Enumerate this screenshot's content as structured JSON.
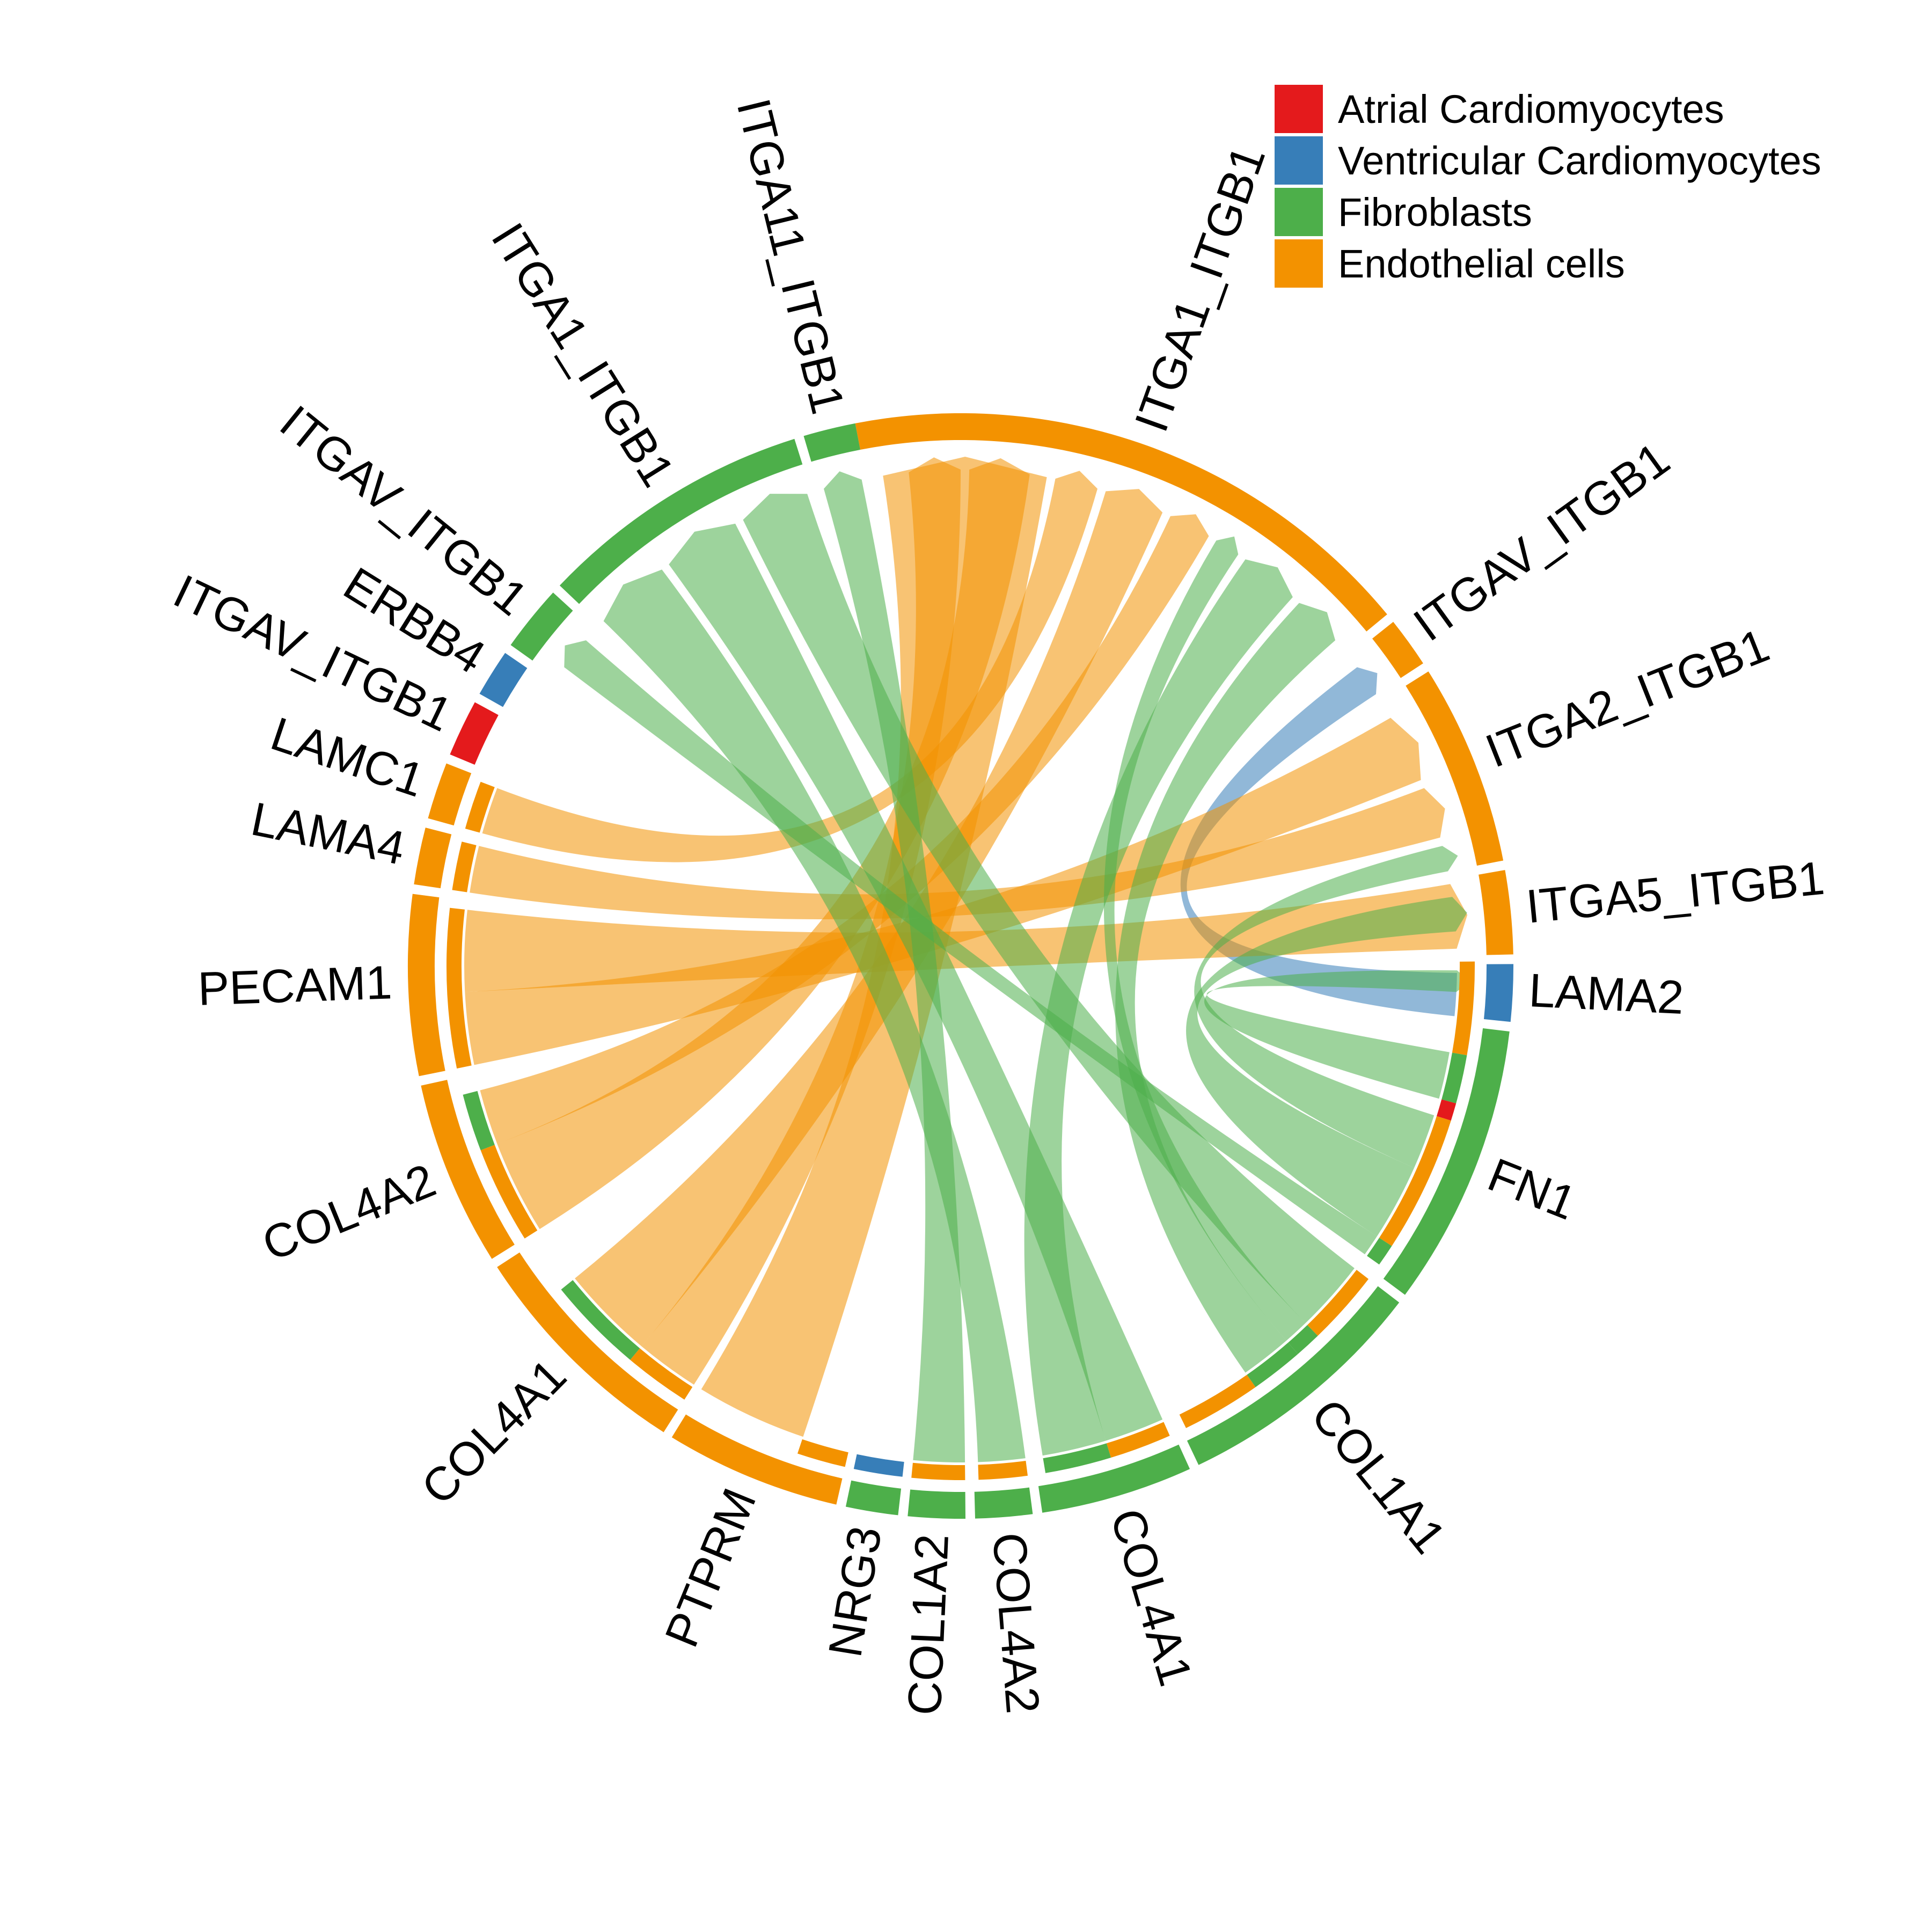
{
  "legend": [
    {
      "label": "Atrial Cardiomyocytes",
      "color": "#e41a1c"
    },
    {
      "label": "Ventricular Cardiomyocytes",
      "color": "#377eb8"
    },
    {
      "label": "Fibroblasts",
      "color": "#4daf4a"
    },
    {
      "label": "Endothelial cells",
      "color": "#f39200"
    }
  ],
  "chart_data": {
    "type": "chord",
    "sectors": [
      {
        "label": "ITGA1_ITGB1",
        "cell_type": "Endothelial cells",
        "role": "receptor",
        "start": 101,
        "end": 39.5
      },
      {
        "label": "ITGAV_ITGB1",
        "cell_type": "Endothelial cells",
        "role": "receptor",
        "start": 38.5,
        "end": 33.2
      },
      {
        "label": "ITGA2_ITGB1",
        "cell_type": "Endothelial cells",
        "role": "receptor",
        "start": 32.2,
        "end": 11
      },
      {
        "label": "ITGA5_ITGB1",
        "cell_type": "Endothelial cells",
        "role": "receptor",
        "start": 10,
        "end": 1.2
      },
      {
        "label": "LAMA2",
        "cell_type": "Ventricular Cardiomyocytes",
        "role": "ligand",
        "start": 0.2,
        "end": -5.8
      },
      {
        "label": "FN1",
        "cell_type": "Fibroblasts",
        "role": "ligand",
        "start": -6.8,
        "end": -36.5
      },
      {
        "label": "COL1A1",
        "cell_type": "Fibroblasts",
        "role": "ligand",
        "start": -37.5,
        "end": -64.5
      },
      {
        "label": "COL4A1",
        "cell_type": "Fibroblasts",
        "role": "ligand",
        "start": -65.5,
        "end": -81.5
      },
      {
        "label": "COL4A2",
        "cell_type": "Fibroblasts",
        "role": "ligand",
        "start": -82.5,
        "end": -88.5
      },
      {
        "label": "COL1A2",
        "cell_type": "Fibroblasts",
        "role": "ligand",
        "start": -89.5,
        "end": -95.5
      },
      {
        "label": "NRG3",
        "cell_type": "Fibroblasts",
        "role": "ligand",
        "start": -96.5,
        "end": -102
      },
      {
        "label": "PTPRM",
        "cell_type": "Endothelial cells",
        "role": "ligand",
        "start": -103,
        "end": -121.5
      },
      {
        "label": "COL4A1",
        "cell_type": "Endothelial cells",
        "role": "ligand",
        "start": -122.5,
        "end": -147
      },
      {
        "label": "COL4A2",
        "cell_type": "Endothelial cells",
        "role": "ligand",
        "start": -148,
        "end": -167.5
      },
      {
        "label": "PECAM1",
        "cell_type": "Endothelial cells",
        "role": "ligand",
        "start": -168.5,
        "end": -187.5
      },
      {
        "label": "LAMA4",
        "cell_type": "Endothelial cells",
        "role": "ligand",
        "start": -188.5,
        "end": -194.5
      },
      {
        "label": "LAMC1",
        "cell_type": "Endothelial cells",
        "role": "ligand",
        "start": -195.5,
        "end": -201.5
      },
      {
        "label": "ITGAV_ITGB1",
        "cell_type": "Atrial Cardiomyocytes",
        "role": "receptor",
        "start": -202.5,
        "end": -208.5
      },
      {
        "label": "ERBB4",
        "cell_type": "Ventricular Cardiomyocytes",
        "role": "receptor",
        "start": -209.5,
        "end": -214.5
      },
      {
        "label": "ITGAV_ITGB1",
        "cell_type": "Fibroblasts",
        "role": "receptor",
        "start": -215.5,
        "end": -222.5
      },
      {
        "label": "ITGA1_ITGB1",
        "cell_type": "Fibroblasts",
        "role": "receptor",
        "start": -223.5,
        "end": -252.5
      },
      {
        "label": "ITGA11_ITGB1",
        "cell_type": "Fibroblasts",
        "role": "receptor",
        "start": -253.5,
        "end": -259
      }
    ],
    "inner_segments": [
      {
        "start": 0.5,
        "end": -10,
        "color": "#f39200"
      },
      {
        "start": -10,
        "end": -15.5,
        "color": "#4daf4a"
      },
      {
        "start": -15.5,
        "end": -17.5,
        "color": "#e41a1c"
      },
      {
        "start": -17.5,
        "end": -33,
        "color": "#f39200"
      },
      {
        "start": -33,
        "end": -35.5,
        "color": "#4daf4a"
      },
      {
        "start": -37.5,
        "end": -46,
        "color": "#f39200"
      },
      {
        "start": -46,
        "end": -49,
        "color": "#4daf4a"
      },
      {
        "start": -49,
        "end": -55,
        "color": "#4daf4a"
      },
      {
        "start": -55,
        "end": -64,
        "color": "#f39200"
      },
      {
        "start": -66,
        "end": -73,
        "color": "#f39200"
      },
      {
        "start": -73,
        "end": -80.5,
        "color": "#4daf4a"
      },
      {
        "start": -82.5,
        "end": -88,
        "color": "#f39200"
      },
      {
        "start": -89.5,
        "end": -95.5,
        "color": "#f39200"
      },
      {
        "start": -96.5,
        "end": -102,
        "color": "#377eb8"
      },
      {
        "start": -103,
        "end": -108.5,
        "color": "#f39200"
      },
      {
        "start": -122.5,
        "end": -130,
        "color": "#f39200"
      },
      {
        "start": -130,
        "end": -141,
        "color": "#4daf4a"
      },
      {
        "start": -148,
        "end": -159,
        "color": "#f39200"
      },
      {
        "start": -159,
        "end": -165.5,
        "color": "#4daf4a"
      },
      {
        "start": -168.5,
        "end": -186.5,
        "color": "#f39200"
      },
      {
        "start": -188.5,
        "end": -194,
        "color": "#f39200"
      },
      {
        "start": -195.5,
        "end": -201,
        "color": "#f39200"
      }
    ],
    "links": [
      {
        "source": "PTPRM",
        "target": "ITGA1_ITGB1",
        "color": "#f39200",
        "s": [
          -108.5,
          -121.5
        ],
        "t": [
          99,
          80
        ]
      },
      {
        "source": "LAMA2",
        "target": "ITGAV_ITGB1",
        "color": "#377eb8",
        "s": [
          -0.8,
          -5.8
        ],
        "t": [
          37,
          33.2
        ]
      },
      {
        "source": "COL4A1",
        "target": "ITGA1_ITGB1",
        "color": "#f39200",
        "s": [
          -122.5,
          -130
        ],
        "t": [
          96,
          90
        ]
      },
      {
        "source": "COL4A2",
        "target": "ITGA1_ITGB1",
        "color": "#f39200",
        "s": [
          -148,
          -159
        ],
        "t": [
          89,
          82
        ]
      },
      {
        "source": "PECAM1",
        "target": "ITGA2_ITGB1",
        "color": "#f39200",
        "s": [
          -168.5,
          -177
        ],
        "t": [
          30,
          22
        ]
      },
      {
        "source": "PECAM1",
        "target": "ITGA5_ITGB1",
        "color": "#f39200",
        "s": [
          -177,
          -186.5
        ],
        "t": [
          9.5,
          2
        ]
      },
      {
        "source": "LAMA4",
        "target": "ITGA2_ITGB1",
        "color": "#f39200",
        "s": [
          -188.5,
          -194
        ],
        "t": [
          21,
          15
        ]
      },
      {
        "source": "LAMC1",
        "target": "ITGA1_ITGB1",
        "color": "#f39200",
        "s": [
          -195.5,
          -201
        ],
        "t": [
          79,
          74
        ]
      },
      {
        "source": "COL4A1",
        "target": "ITGA1_ITGB1",
        "color": "#f39200",
        "s": [
          -130,
          -141
        ],
        "t": [
          73,
          66
        ]
      },
      {
        "source": "COL4A2",
        "target": "ITGA1_ITGB1",
        "color": "#f39200",
        "s": [
          -159,
          -165.5
        ],
        "t": [
          65,
          60
        ]
      },
      {
        "source": "FN1",
        "target": "ITGA5_ITGB1",
        "color": "#4daf4a",
        "s": [
          -10,
          -15.5
        ],
        "t": [
          -0.5,
          -3
        ]
      },
      {
        "source": "COL1A1",
        "target": "ITGA1_ITGB1",
        "color": "#4daf4a",
        "s": [
          -46,
          -49
        ],
        "t": [
          59,
          56
        ]
      },
      {
        "source": "COL4A1",
        "target": "ITGA1_ITGB1",
        "color": "#4daf4a",
        "s": [
          -73,
          -80.5
        ],
        "t": [
          55,
          48
        ]
      },
      {
        "source": "COL1A1",
        "target": "ITGA1_ITGB1",
        "color": "#4daf4a",
        "s": [
          -49,
          -55
        ],
        "t": [
          47,
          41
        ]
      },
      {
        "source": "FN1",
        "target": "ITGAV_ITGB1",
        "color": "#4daf4a",
        "s": [
          -33,
          -35.5
        ],
        "t": [
          -217,
          -221
        ]
      },
      {
        "source": "COL1A2",
        "target": "ITGA11_ITGB1",
        "color": "#4daf4a",
        "s": [
          -89.5,
          -95.5
        ],
        "t": [
          -254,
          -258.5
        ]
      },
      {
        "source": "COL4A2",
        "target": "ITGA1_ITGB1",
        "color": "#4daf4a",
        "s": [
          -82.5,
          -88
        ],
        "t": [
          -224,
          -233
        ]
      },
      {
        "source": "COL4A1",
        "target": "ITGA1_ITGB1",
        "color": "#4daf4a",
        "s": [
          -66,
          -73
        ],
        "t": [
          -234,
          -243
        ]
      },
      {
        "source": "COL1A1",
        "target": "ITGA1_ITGB1",
        "color": "#4daf4a",
        "s": [
          -37.5,
          -46
        ],
        "t": [
          -244,
          -252
        ]
      },
      {
        "source": "FN1",
        "target": "ITGA2_ITGB1",
        "color": "#4daf4a",
        "s": [
          -17.5,
          -24
        ],
        "t": [
          14,
          11
        ]
      },
      {
        "source": "FN1",
        "target": "ITGA5_ITGB1",
        "color": "#4daf4a",
        "s": [
          -24,
          -33
        ],
        "t": [
          8,
          4
        ]
      }
    ]
  }
}
